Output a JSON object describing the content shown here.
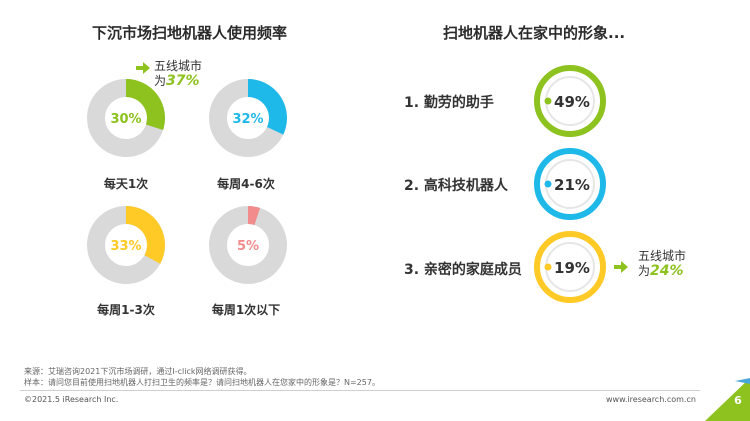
{
  "left_title": "下沉市场扫地机器人使用频率",
  "right_title": "扫地机器人在家中的形象...",
  "chart_data": [
    {
      "type": "pie",
      "title": "下沉市场扫地机器人使用频率",
      "items": [
        {
          "label": "每天1次",
          "value": 30,
          "value_label": "30%",
          "color": "#8dc21f"
        },
        {
          "label": "每周4-6次",
          "value": 32,
          "value_label": "32%",
          "color": "#1fb9e9"
        },
        {
          "label": "每周1-3次",
          "value": 33,
          "value_label": "33%",
          "color": "#ffc926"
        },
        {
          "label": "每周1次以下",
          "value": 5,
          "value_label": "5%",
          "color": "#f28c8c"
        }
      ],
      "track_color": "#d9d9d9"
    },
    {
      "type": "pie",
      "title": "扫地机器人在家中的形象...",
      "items": [
        {
          "label": "1. 勤劳的助手",
          "value": 49,
          "value_label": "49%",
          "color": "#8dc21f"
        },
        {
          "label": "2. 高科技机器人",
          "value": 21,
          "value_label": "21%",
          "color": "#1fb9e9"
        },
        {
          "label": "3. 亲密的家庭成员",
          "value": 19,
          "value_label": "19%",
          "color": "#ffc926"
        }
      ]
    }
  ],
  "callouts": [
    {
      "line1": "五线城市",
      "prefix": "为",
      "pct": "37%"
    },
    {
      "line1": "五线城市",
      "prefix": "为",
      "pct": "24%"
    }
  ],
  "footnotes": {
    "source": "来源：艾瑞咨询2021下沉市场调研，通过I-click网络调研获得。",
    "sample": "样本：请问您目前使用扫地机器人打扫卫生的频率是？请问扫地机器人在您家中的形象是？N=257。"
  },
  "footer": {
    "copyright": "©2021.5 iResearch Inc.",
    "website": "www.iresearch.com.cn",
    "page_number": "6"
  },
  "colors": {
    "green": "#8dc21f",
    "blue": "#1fb9e9",
    "yellow": "#ffc926",
    "pink": "#f28c8c",
    "track": "#d9d9d9"
  }
}
